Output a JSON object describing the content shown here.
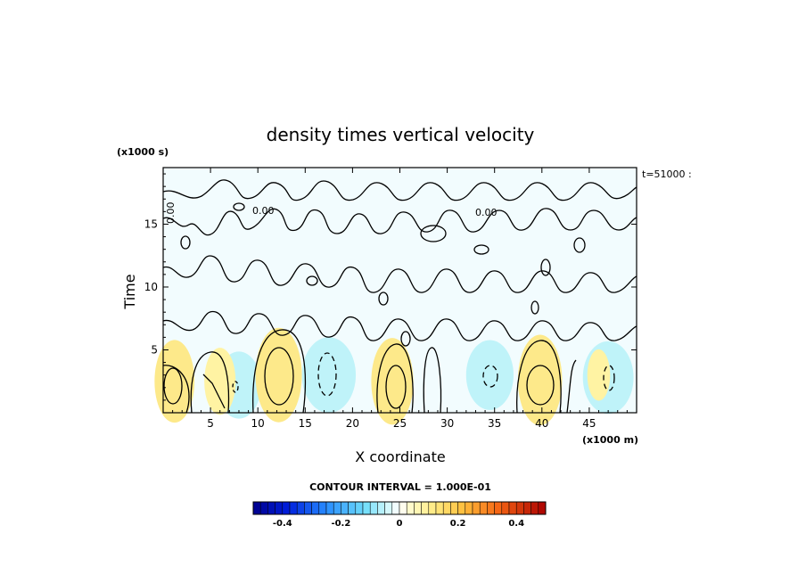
{
  "chart_data": {
    "type": "heatmap",
    "title": "density times vertical velocity",
    "xlabel": "X coordinate",
    "ylabel": "Time",
    "x_unit_label": "(x1000 m)",
    "y_unit_label": "(x1000 s)",
    "time_stamp": "t=51000 :",
    "xlim": [
      0,
      50
    ],
    "ylim": [
      0,
      19.5
    ],
    "x_ticks": [
      "5",
      "10",
      "15",
      "20",
      "25",
      "30",
      "35",
      "40",
      "45"
    ],
    "x_tick_values": [
      5,
      10,
      15,
      20,
      25,
      30,
      35,
      40,
      45
    ],
    "y_ticks": [
      "5",
      "10",
      "15"
    ],
    "y_tick_values": [
      5,
      10,
      15
    ],
    "contour_interval": "CONTOUR INTERVAL = 1.000E-01",
    "contour_label": "0.00",
    "colorbar": {
      "range": [
        -0.5,
        0.5
      ],
      "ticks": [
        "-0.4",
        "-0.2",
        "0",
        "0.2",
        "0.4"
      ],
      "tick_values": [
        -0.4,
        -0.2,
        0,
        0.2,
        0.4
      ]
    },
    "positive_features": [
      {
        "x": 1.2,
        "t": 2.5,
        "peak": 0.12
      },
      {
        "x": 6.0,
        "t": 2.5,
        "peak": 0.08
      },
      {
        "x": 12.2,
        "t": 3.0,
        "peak": 0.15
      },
      {
        "x": 24.2,
        "t": 2.5,
        "peak": 0.13
      },
      {
        "x": 39.8,
        "t": 2.6,
        "peak": 0.14
      },
      {
        "x": 46.0,
        "t": 3.0,
        "peak": 0.04
      }
    ],
    "negative_features": [
      {
        "x": 8.0,
        "t": 2.2,
        "peak": -0.06
      },
      {
        "x": 17.5,
        "t": 3.0,
        "peak": -0.09
      },
      {
        "x": 34.5,
        "t": 3.0,
        "peak": -0.07
      },
      {
        "x": 47.0,
        "t": 2.8,
        "peak": -0.08
      }
    ]
  },
  "colors": {
    "positive": "#fff3a3",
    "positive_strong": "#fde98a",
    "negative": "#b9f2f8",
    "near_zero": "#f2fcfe",
    "line": "#000000"
  }
}
